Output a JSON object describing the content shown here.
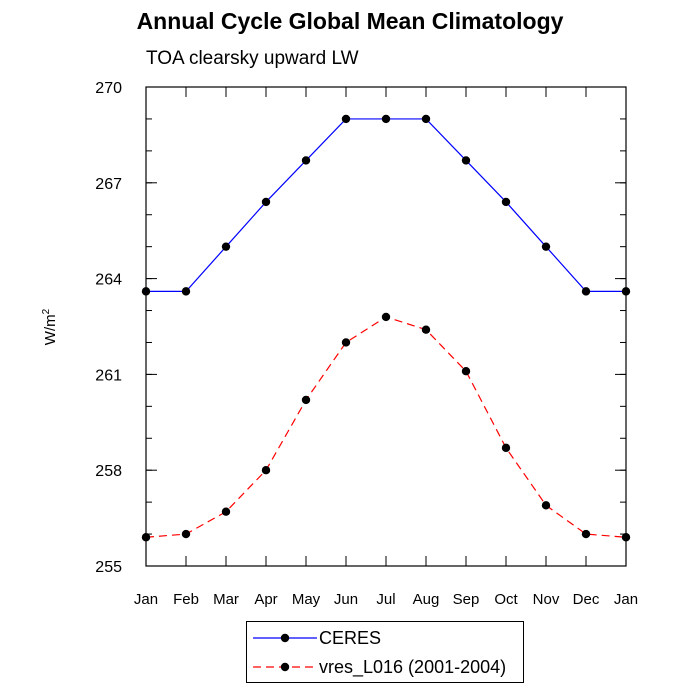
{
  "chart_data": {
    "type": "line",
    "title": "Annual Cycle Global Mean Climatology",
    "subtitle": "TOA clearsky upward LW",
    "ylabel": "W/m",
    "ylabel_sup": "2",
    "categories": [
      "Jan",
      "Feb",
      "Mar",
      "Apr",
      "May",
      "Jun",
      "Jul",
      "Aug",
      "Sep",
      "Oct",
      "Nov",
      "Dec",
      "Jan"
    ],
    "ylim": [
      255,
      270
    ],
    "yticks": [
      255,
      258,
      261,
      264,
      267,
      270
    ],
    "yticks_minor_step": 1,
    "legend_position": "bottom-center",
    "series": [
      {
        "name": "CERES",
        "color": "#0000ff",
        "linestyle": "solid",
        "marker": "filled-circle",
        "values": [
          263.6,
          263.6,
          265.0,
          266.4,
          267.7,
          269.0,
          269.0,
          269.0,
          267.7,
          266.4,
          265.0,
          263.6,
          263.6
        ]
      },
      {
        "name": "vres_L016 (2001-2004)",
        "color": "#ff0000",
        "linestyle": "dashed",
        "marker": "filled-circle",
        "values": [
          255.9,
          256.0,
          256.7,
          258.0,
          260.2,
          262.0,
          262.8,
          262.4,
          261.1,
          258.7,
          256.9,
          256.0,
          255.9
        ]
      }
    ]
  }
}
